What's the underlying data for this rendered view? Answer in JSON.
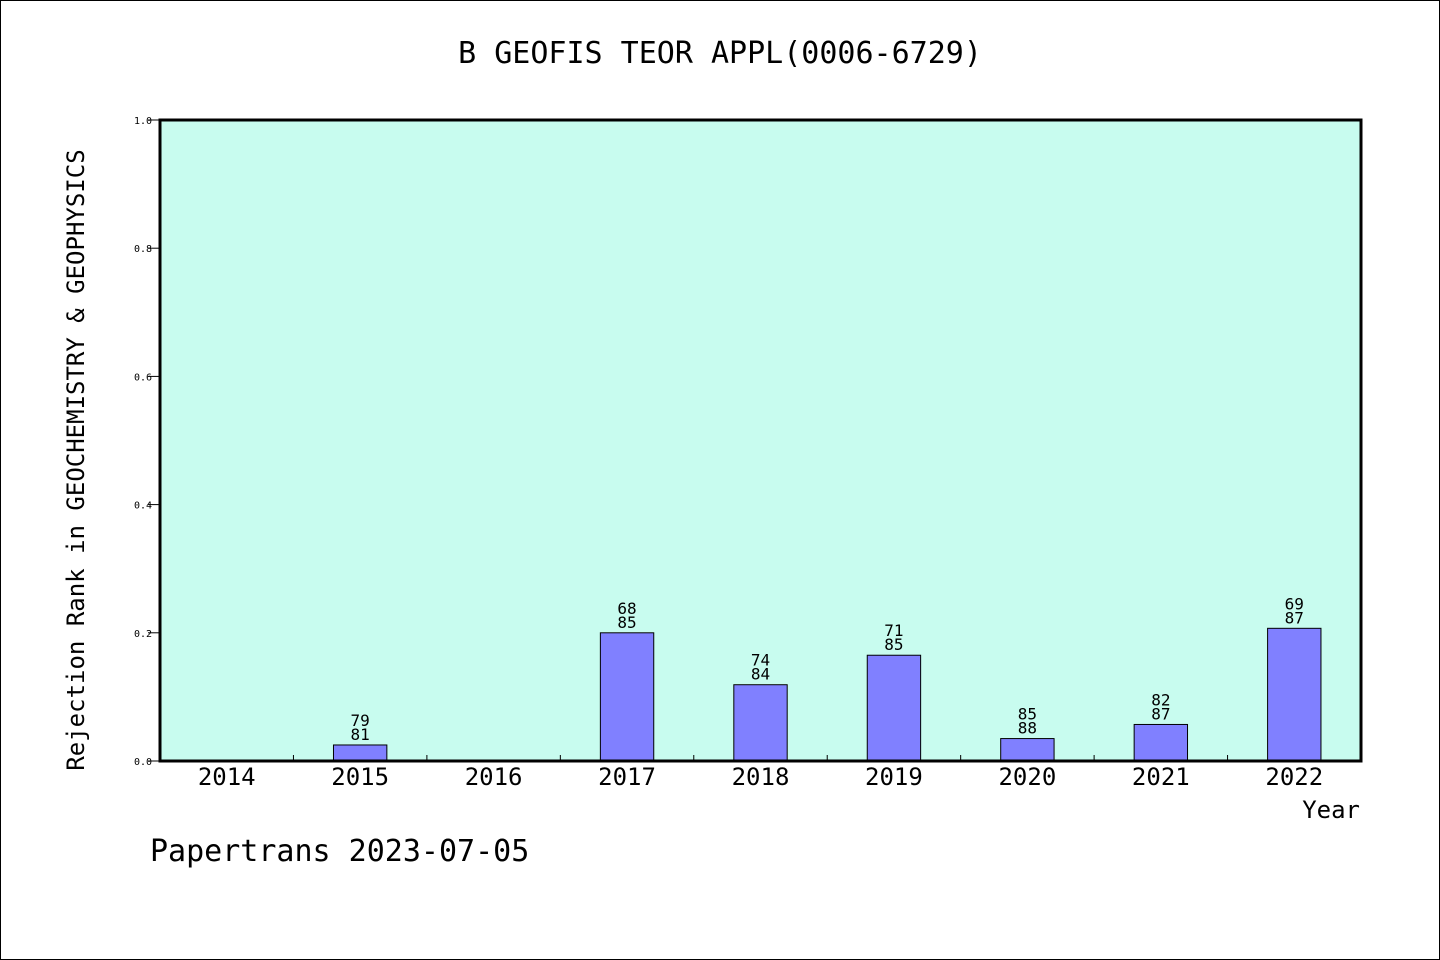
{
  "chart_data": {
    "type": "bar",
    "title": "B GEOFIS TEOR APPL(0006-6729)",
    "xlabel": "Year",
    "ylabel": "Rejection Rank in GEOCHEMISTRY & GEOPHYSICS",
    "ylim": [
      0,
      1.0
    ],
    "yticks": [
      "0.0",
      "0.2",
      "0.4",
      "0.6",
      "0.8",
      "1.0"
    ],
    "categories": [
      "2014",
      "2015",
      "2016",
      "2017",
      "2018",
      "2019",
      "2020",
      "2021",
      "2022"
    ],
    "values": [
      0,
      0.025,
      0,
      0.2,
      0.119,
      0.165,
      0.035,
      0.057,
      0.207
    ],
    "bar_labels": [
      [
        "",
        ""
      ],
      [
        "79",
        "81"
      ],
      [
        "",
        ""
      ],
      [
        "68",
        "85"
      ],
      [
        "74",
        "84"
      ],
      [
        "71",
        "85"
      ],
      [
        "85",
        "88"
      ],
      [
        "82",
        "87"
      ],
      [
        "69",
        "87"
      ]
    ],
    "grid": false,
    "colors": {
      "plot_background": "#c8fcef",
      "bar_fill": "#8080ff",
      "bar_stroke": "#000000"
    }
  },
  "footer": "Papertrans 2023-07-05"
}
